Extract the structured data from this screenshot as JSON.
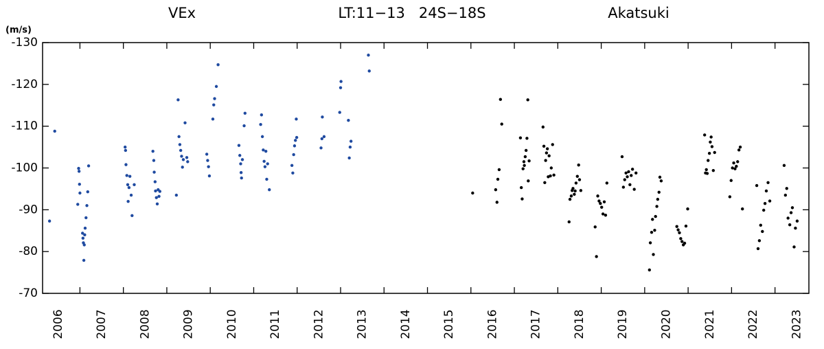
{
  "chart_data": {
    "type": "scatter",
    "title": "LT:11−13   24S−18S",
    "y_label": "(m/s)",
    "xlim": [
      2006.14,
      2023.78
    ],
    "ylim": [
      -70,
      -130
    ],
    "yticks": [
      -130,
      -120,
      -110,
      -100,
      -90,
      -80,
      -70
    ],
    "xticks": [
      2006,
      2007,
      2008,
      2009,
      2010,
      2011,
      2012,
      2013,
      2014,
      2015,
      2016,
      2017,
      2018,
      2019,
      2020,
      2021,
      2022,
      2023
    ],
    "series": [
      {
        "name": "VEx",
        "color": "#1f4aa0",
        "x": [
          2006.3,
          2006.42,
          2006.95,
          2006.97,
          2006.98,
          2006.99,
          2007.0,
          2007.06,
          2007.07,
          2007.08,
          2007.09,
          2007.1,
          2007.11,
          2007.12,
          2007.14,
          2007.16,
          2007.18,
          2007.2,
          2008.04,
          2008.05,
          2008.06,
          2008.08,
          2008.1,
          2008.11,
          2008.13,
          2008.15,
          2008.18,
          2008.2,
          2008.25,
          2008.68,
          2008.7,
          2008.71,
          2008.73,
          2008.74,
          2008.76,
          2008.78,
          2008.8,
          2008.82,
          2008.84,
          2009.22,
          2009.26,
          2009.28,
          2009.3,
          2009.32,
          2009.34,
          2009.36,
          2009.38,
          2009.42,
          2009.46,
          2009.48,
          2009.92,
          2009.94,
          2009.96,
          2009.98,
          2010.06,
          2010.08,
          2010.1,
          2010.14,
          2010.18,
          2010.66,
          2010.68,
          2010.7,
          2010.71,
          2010.72,
          2010.74,
          2010.78,
          2010.8,
          2011.16,
          2011.18,
          2011.2,
          2011.22,
          2011.24,
          2011.26,
          2011.28,
          2011.3,
          2011.32,
          2011.36,
          2011.88,
          2011.9,
          2011.92,
          2011.94,
          2011.96,
          2011.98,
          2011.99,
          2012.55,
          2012.57,
          2012.58,
          2012.62,
          2012.98,
          2013.0,
          2013.01,
          2013.18,
          2013.2,
          2013.22,
          2013.24,
          2013.64,
          2013.66
        ],
        "values": [
          -87.3,
          -108.8,
          -91.3,
          -99.9,
          -99.2,
          -96.1,
          -94.0,
          -84.4,
          -83.2,
          -82.1,
          -77.9,
          -81.6,
          -84.0,
          -85.6,
          -88.1,
          -91.0,
          -94.3,
          -100.5,
          -105.0,
          -104.2,
          -100.8,
          -98.2,
          -96.0,
          -92.0,
          -95.3,
          -98.0,
          -93.5,
          -88.6,
          -96.0,
          -104.0,
          -101.8,
          -99.0,
          -96.7,
          -94.5,
          -92.9,
          -91.4,
          -94.8,
          -93.2,
          -94.4,
          -93.5,
          -116.3,
          -107.5,
          -105.6,
          -104.2,
          -102.8,
          -100.2,
          -102.0,
          -110.8,
          -102.5,
          -101.5,
          -103.3,
          -101.8,
          -100.3,
          -98.1,
          -111.7,
          -115.1,
          -116.6,
          -119.5,
          -124.7,
          -105.4,
          -103.0,
          -101.0,
          -98.9,
          -97.6,
          -102.0,
          -110.1,
          -113.1,
          -110.4,
          -112.7,
          -107.5,
          -104.3,
          -101.6,
          -100.3,
          -104.0,
          -97.3,
          -101.0,
          -94.8,
          -100.6,
          -98.8,
          -103.2,
          -105.3,
          -106.6,
          -111.7,
          -107.3,
          -104.8,
          -107.0,
          -112.2,
          -107.5,
          -113.3,
          -119.2,
          -120.7,
          -111.4,
          -102.4,
          -105.0,
          -106.4,
          -127.0,
          -123.2
        ]
      },
      {
        "name": "Akatsuki",
        "color": "#000000",
        "x": [
          2016.04,
          2016.57,
          2016.6,
          2016.62,
          2016.65,
          2016.68,
          2016.71,
          2017.14,
          2017.16,
          2017.18,
          2017.2,
          2017.22,
          2017.23,
          2017.25,
          2017.27,
          2017.29,
          2017.31,
          2017.32,
          2017.34,
          2017.66,
          2017.68,
          2017.7,
          2017.72,
          2017.74,
          2017.76,
          2017.78,
          2017.8,
          2017.83,
          2017.85,
          2017.88,
          2017.91,
          2018.26,
          2018.28,
          2018.31,
          2018.33,
          2018.35,
          2018.38,
          2018.4,
          2018.42,
          2018.45,
          2018.48,
          2018.5,
          2018.53,
          2018.86,
          2018.89,
          2018.92,
          2018.95,
          2018.98,
          2019.01,
          2019.04,
          2019.07,
          2019.1,
          2019.13,
          2019.48,
          2019.51,
          2019.54,
          2019.57,
          2019.6,
          2019.63,
          2019.66,
          2019.69,
          2019.72,
          2019.76,
          2019.8,
          2020.11,
          2020.13,
          2020.16,
          2020.18,
          2020.2,
          2020.23,
          2020.25,
          2020.28,
          2020.3,
          2020.33,
          2020.35,
          2020.38,
          2020.74,
          2020.77,
          2020.8,
          2020.83,
          2020.86,
          2020.89,
          2020.92,
          2020.95,
          2020.99,
          2021.38,
          2021.4,
          2021.42,
          2021.44,
          2021.46,
          2021.49,
          2021.51,
          2021.53,
          2021.55,
          2021.58,
          2021.61,
          2021.96,
          2021.99,
          2022.02,
          2022.05,
          2022.08,
          2022.11,
          2022.14,
          2022.17,
          2022.2,
          2022.25,
          2022.58,
          2022.61,
          2022.64,
          2022.67,
          2022.71,
          2022.74,
          2022.77,
          2022.8,
          2022.84,
          2022.88,
          2023.21,
          2023.24,
          2023.27,
          2023.3,
          2023.34,
          2023.37,
          2023.4,
          2023.44,
          2023.47,
          2023.51
        ],
        "values": [
          -94.0,
          -94.8,
          -91.8,
          -97.3,
          -99.6,
          -116.4,
          -110.5,
          -107.2,
          -95.3,
          -92.6,
          -99.8,
          -101.5,
          -100.6,
          -102.7,
          -104.2,
          -107.1,
          -116.3,
          -96.9,
          -101.7,
          -109.8,
          -105.2,
          -96.5,
          -101.8,
          -103.6,
          -104.6,
          -97.9,
          -102.9,
          -98.1,
          -100.0,
          -105.6,
          -98.3,
          -87.1,
          -92.5,
          -93.3,
          -94.6,
          -95.1,
          -93.7,
          -94.5,
          -96.4,
          -98.0,
          -100.7,
          -97.2,
          -94.6,
          -85.9,
          -78.8,
          -93.3,
          -92.1,
          -91.5,
          -90.6,
          -89.0,
          -91.9,
          -88.7,
          -96.4,
          -102.7,
          -95.4,
          -97.2,
          -98.8,
          -97.9,
          -99.1,
          -96.0,
          -98.2,
          -99.7,
          -94.9,
          -98.8,
          -75.6,
          -82.1,
          -84.6,
          -87.7,
          -79.3,
          -85.1,
          -88.4,
          -90.8,
          -92.5,
          -94.2,
          -97.8,
          -96.9,
          -86.0,
          -85.2,
          -84.5,
          -83.1,
          -82.4,
          -81.6,
          -82.0,
          -86.1,
          -90.2,
          -107.9,
          -98.8,
          -99.6,
          -98.7,
          -101.8,
          -103.5,
          -106.2,
          -107.4,
          -105.1,
          -99.4,
          -103.7,
          -93.1,
          -97.0,
          -100.0,
          -101.2,
          -99.8,
          -100.4,
          -101.5,
          -104.3,
          -105.0,
          -90.2,
          -95.8,
          -80.7,
          -82.6,
          -86.3,
          -84.8,
          -89.9,
          -91.5,
          -94.5,
          -96.5,
          -92.1,
          -100.6,
          -93.5,
          -95.1,
          -88.0,
          -86.4,
          -89.3,
          -90.5,
          -81.1,
          -85.6,
          -87.3
        ]
      }
    ]
  }
}
